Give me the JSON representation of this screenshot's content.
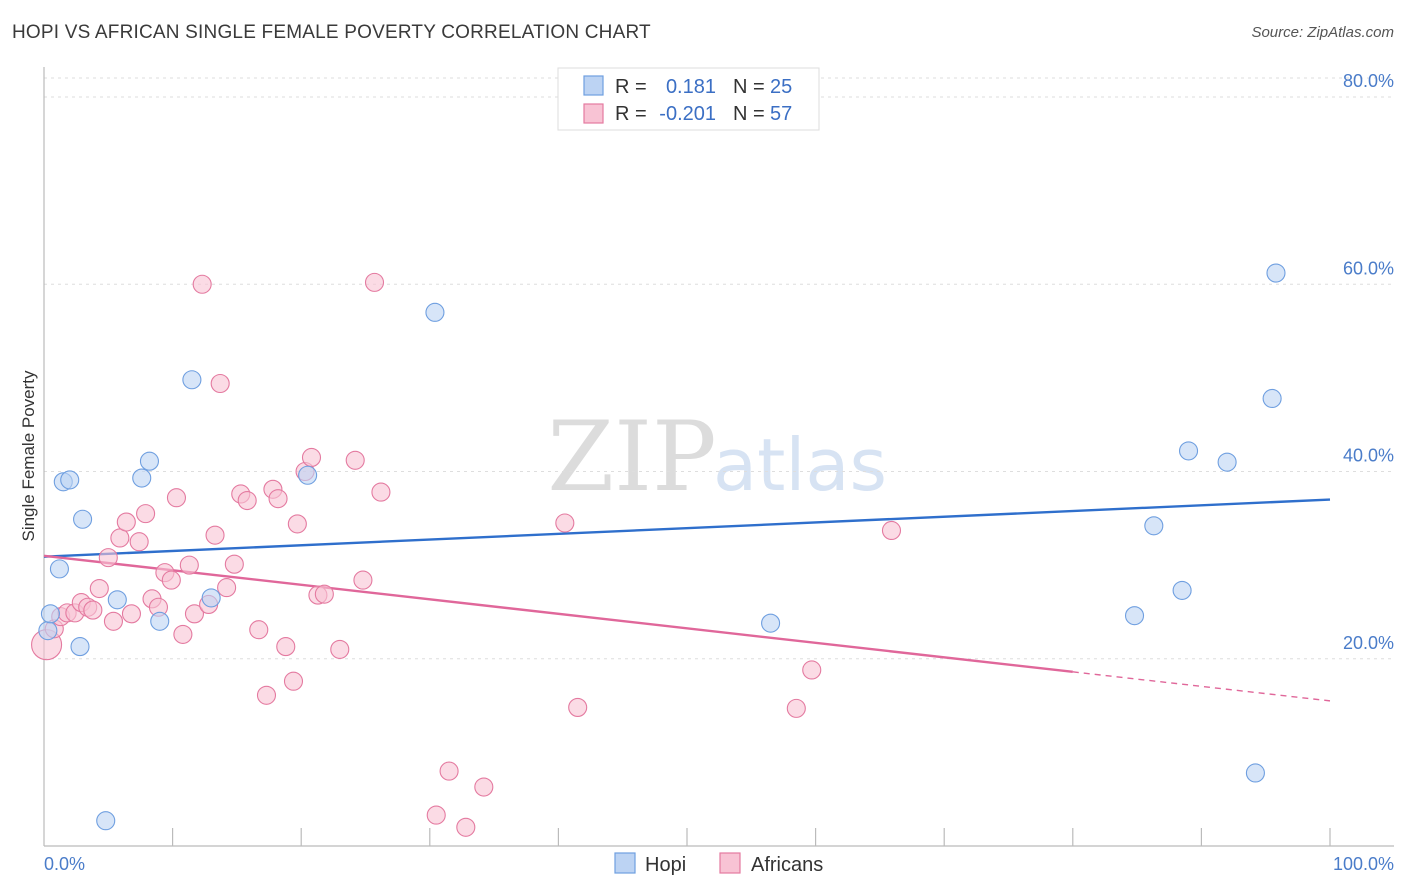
{
  "title": "HOPI VS AFRICAN SINGLE FEMALE POVERTY CORRELATION CHART",
  "source": "Source: ZipAtlas.com",
  "watermark": {
    "zip": "ZIP",
    "atlas": "atlas"
  },
  "chart_data": {
    "type": "scatter",
    "ylabel": "Single Female Poverty",
    "xlim": [
      0,
      100
    ],
    "ylim": [
      0,
      80
    ],
    "x_tick_labels": [
      "0.0%",
      "100.0%"
    ],
    "y_ticks": [
      20,
      40,
      60,
      80
    ],
    "y_tick_labels": [
      "20.0%",
      "40.0%",
      "60.0%",
      "80.0%"
    ],
    "grid": true,
    "legend_placement": "top-center",
    "legend": [
      {
        "r_label": "R =",
        "r_value": "0.181",
        "n_label": "N =",
        "n_value": "25"
      },
      {
        "r_label": "R =",
        "r_value": "-0.201",
        "n_label": "N =",
        "n_value": "57"
      }
    ],
    "series": [
      {
        "name": "Hopi",
        "color": "#6f9fe0",
        "fill": "#bcd3f3",
        "trend": {
          "x0": 0,
          "y0": 30.9,
          "x1": 100,
          "y1": 37.0,
          "solid_until": 100
        },
        "points": [
          [
            0.3,
            23.0
          ],
          [
            0.5,
            24.8
          ],
          [
            1.2,
            29.6
          ],
          [
            1.5,
            38.9
          ],
          [
            2.0,
            39.1
          ],
          [
            2.8,
            21.3
          ],
          [
            3.0,
            34.9
          ],
          [
            4.8,
            2.7
          ],
          [
            5.7,
            26.3
          ],
          [
            7.6,
            39.3
          ],
          [
            8.2,
            41.1
          ],
          [
            9.0,
            24.0
          ],
          [
            11.5,
            49.8
          ],
          [
            13.0,
            26.5
          ],
          [
            20.5,
            39.6
          ],
          [
            30.4,
            57.0
          ],
          [
            56.5,
            23.8
          ],
          [
            84.8,
            24.6
          ],
          [
            86.3,
            34.2
          ],
          [
            88.5,
            27.3
          ],
          [
            89.0,
            42.2
          ],
          [
            92.0,
            41.0
          ],
          [
            94.2,
            7.8
          ],
          [
            95.5,
            47.8
          ],
          [
            95.8,
            61.2
          ]
        ]
      },
      {
        "name": "Africans",
        "color": "#e47aa0",
        "fill": "#f8c3d4",
        "trend": {
          "x0": 0,
          "y0": 31.0,
          "x1": 100,
          "y1": 15.5,
          "solid_until": 80
        },
        "points": [
          [
            0.2,
            21.5
          ],
          [
            0.8,
            23.2
          ],
          [
            1.3,
            24.5
          ],
          [
            1.8,
            24.9
          ],
          [
            2.4,
            24.9
          ],
          [
            2.9,
            26.0
          ],
          [
            3.4,
            25.5
          ],
          [
            3.8,
            25.2
          ],
          [
            4.3,
            27.5
          ],
          [
            5.0,
            30.8
          ],
          [
            5.4,
            24.0
          ],
          [
            5.9,
            32.9
          ],
          [
            6.4,
            34.6
          ],
          [
            6.8,
            24.8
          ],
          [
            7.4,
            32.5
          ],
          [
            7.9,
            35.5
          ],
          [
            8.4,
            26.4
          ],
          [
            8.9,
            25.5
          ],
          [
            9.4,
            29.2
          ],
          [
            9.9,
            28.4
          ],
          [
            10.3,
            37.2
          ],
          [
            10.8,
            22.6
          ],
          [
            11.3,
            30.0
          ],
          [
            11.7,
            24.8
          ],
          [
            12.3,
            60.0
          ],
          [
            12.8,
            25.8
          ],
          [
            13.3,
            33.2
          ],
          [
            13.7,
            49.4
          ],
          [
            14.2,
            27.6
          ],
          [
            14.8,
            30.1
          ],
          [
            15.3,
            37.6
          ],
          [
            15.8,
            36.9
          ],
          [
            16.7,
            23.1
          ],
          [
            17.3,
            16.1
          ],
          [
            17.8,
            38.1
          ],
          [
            18.2,
            37.1
          ],
          [
            18.8,
            21.3
          ],
          [
            19.4,
            17.6
          ],
          [
            19.7,
            34.4
          ],
          [
            20.3,
            40.0
          ],
          [
            20.8,
            41.5
          ],
          [
            21.3,
            26.8
          ],
          [
            21.8,
            26.9
          ],
          [
            23.0,
            21.0
          ],
          [
            24.2,
            41.2
          ],
          [
            24.8,
            28.4
          ],
          [
            25.7,
            60.2
          ],
          [
            26.2,
            37.8
          ],
          [
            30.5,
            3.3
          ],
          [
            31.5,
            8.0
          ],
          [
            32.8,
            2.0
          ],
          [
            34.2,
            6.3
          ],
          [
            40.5,
            34.5
          ],
          [
            41.5,
            14.8
          ],
          [
            58.5,
            14.7
          ],
          [
            59.7,
            18.8
          ],
          [
            65.9,
            33.7
          ]
        ]
      }
    ]
  }
}
